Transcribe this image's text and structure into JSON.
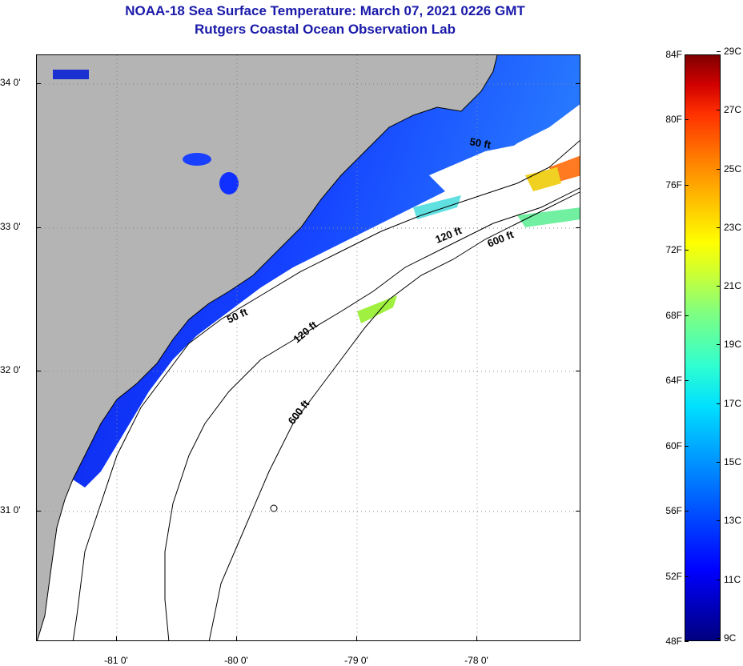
{
  "title": {
    "line1": "NOAA-18 Sea Surface Temperature:  March 07, 2021 0226 GMT",
    "line2": "Rutgers Coastal Ocean Observation Lab"
  },
  "map": {
    "lat_labels": [
      "34 0'",
      "33 0'",
      "32 0'",
      "31 0'"
    ],
    "lon_labels": [
      "-81 0'",
      "-80 0'",
      "-79 0'",
      "-78 0'"
    ],
    "contour_labels": [
      "50 ft",
      "120 ft",
      "600 ft",
      "50 ft",
      "120 ft",
      "600 ft"
    ],
    "colors": {
      "land": "#b4b4b4",
      "cloud": "#ffffff",
      "water_deep": "#0a2aff",
      "water_mid": "#2a7aff"
    }
  },
  "colorbar": {
    "fahrenheit_labels": [
      "84F",
      "80F",
      "76F",
      "72F",
      "68F",
      "64F",
      "60F",
      "56F",
      "52F",
      "48F"
    ],
    "celsius_labels": [
      "29C",
      "27C",
      "25C",
      "23C",
      "21C",
      "19C",
      "17C",
      "15C",
      "13C",
      "11C",
      "9C"
    ]
  }
}
